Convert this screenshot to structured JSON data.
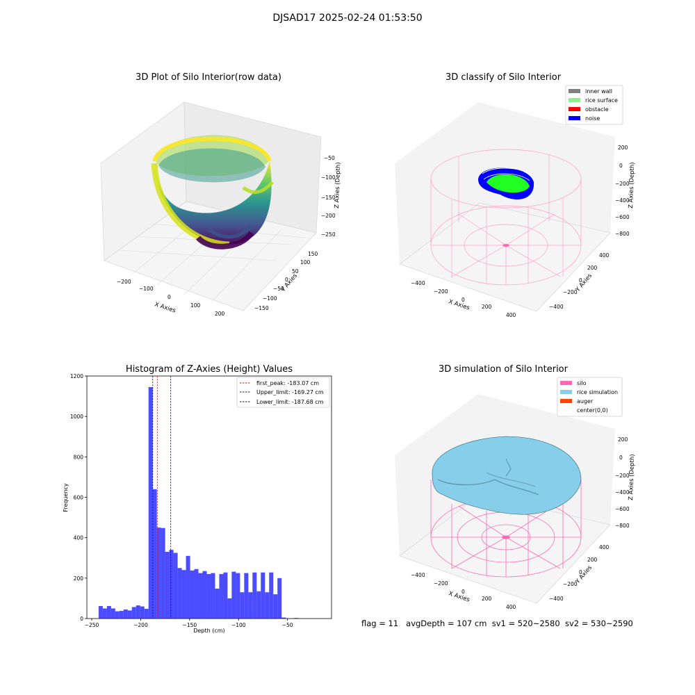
{
  "figure": {
    "suptitle": "DJSAD17 2025-02-24 01:53:50",
    "footer": {
      "flag": "flag = 11",
      "avg_depth": "avgDepth = 107 cm",
      "sv1": "sv1 = 520~2580",
      "sv2": "sv2 = 530~2590"
    }
  },
  "chart_data": [
    {
      "type": "scatter",
      "title": "3D Plot of Silo Interior(row data)",
      "xlabel": "X Axies",
      "ylabel": "Y Axies",
      "zlabel": "Z Axies (Depth)",
      "x_ticks": [
        "−200",
        "−100",
        "0",
        "100",
        "200"
      ],
      "y_ticks": [
        "−150",
        "−100",
        "−50",
        "0",
        "50",
        "100",
        "150"
      ],
      "z_ticks": [
        "−50",
        "−100",
        "−150",
        "−200",
        "−250"
      ],
      "colormap": "viridis"
    },
    {
      "type": "scatter",
      "title": "3D classify of Silo Interior",
      "xlabel": "X Axies",
      "ylabel": "Y Axies",
      "zlabel": "Z Axies (Depth)",
      "x_ticks": [
        "−400",
        "−200",
        "0",
        "200",
        "400"
      ],
      "y_ticks": [
        "−400",
        "−200",
        "0",
        "200",
        "400"
      ],
      "z_ticks": [
        "200",
        "0",
        "−200",
        "−400",
        "−600",
        "−800"
      ],
      "legend": [
        {
          "label": "inner wall",
          "color": "#808080"
        },
        {
          "label": "rice surface",
          "color": "#90ee90"
        },
        {
          "label": "obstacle",
          "color": "#ff0000"
        },
        {
          "label": "noise",
          "color": "#0000ff"
        }
      ],
      "legend_position": "top-right"
    },
    {
      "type": "bar",
      "title": "Histogram of Z-Axies (Height) Values",
      "xlabel": "Depth (cm)",
      "ylabel": "Frequency",
      "xlim": [
        -255,
        -5
      ],
      "ylim": [
        0,
        1200
      ],
      "x_ticks": [
        -250,
        -200,
        -150,
        -100,
        -50
      ],
      "x_tick_labels": [
        "−250",
        "−200",
        "−150",
        "−100",
        "−50"
      ],
      "y_ticks": [
        0,
        200,
        400,
        600,
        800,
        1000,
        1200
      ],
      "bin_start": -243,
      "bin_width": 4.25,
      "values": [
        62,
        50,
        62,
        50,
        36,
        38,
        45,
        40,
        57,
        65,
        60,
        48,
        1145,
        640,
        450,
        448,
        330,
        340,
        325,
        250,
        240,
        310,
        238,
        245,
        225,
        235,
        220,
        225,
        148,
        220,
        228,
        100,
        232,
        225,
        130,
        225,
        130,
        228,
        135,
        228,
        130,
        228,
        120,
        200,
        5,
        0,
        0,
        3
      ],
      "color": "#0000ff",
      "vlines": [
        {
          "label": "first_peak: -183.07 cm",
          "x": -183.07,
          "color": "#ff0000"
        },
        {
          "label": "Upper_limit: -169.27 cm",
          "x": -169.27,
          "color": "#0000cc"
        },
        {
          "label": "Lower_limit: -187.68 cm",
          "x": -187.68,
          "color": "#0000cc"
        }
      ],
      "legend_position": "top-right"
    },
    {
      "type": "scatter",
      "title": "3D simulation of Silo Interior",
      "xlabel": "X Axies",
      "ylabel": "Y Axies",
      "zlabel": "Z Axies (Depth)",
      "x_ticks": [
        "−400",
        "−200",
        "0",
        "200",
        "400"
      ],
      "y_ticks": [
        "−400",
        "−200",
        "0",
        "200",
        "400"
      ],
      "z_ticks": [
        "200",
        "0",
        "−200",
        "−400",
        "−600",
        "−800"
      ],
      "legend": [
        {
          "label": "silo",
          "color": "#ff69b4"
        },
        {
          "label": "rice simulation",
          "color": "#87ceeb"
        },
        {
          "label": "auger",
          "color": "#ff4500"
        },
        {
          "label": "center(0,0)",
          "color": "#ffffff"
        }
      ],
      "legend_position": "top-right"
    }
  ]
}
